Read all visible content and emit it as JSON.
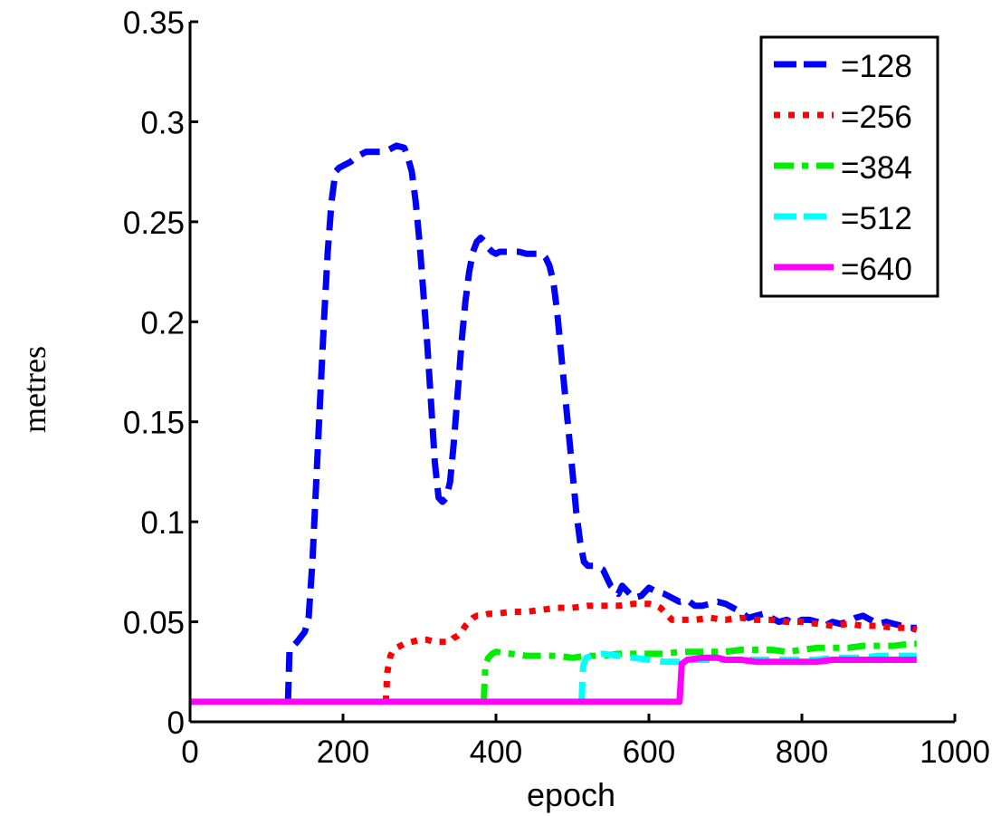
{
  "chart_data": {
    "type": "line",
    "title": "",
    "xlabel": "epoch",
    "ylabel": "metres",
    "xlim": [
      0,
      1000
    ],
    "ylim": [
      0,
      0.35
    ],
    "xticks": [
      0,
      200,
      400,
      600,
      800,
      1000
    ],
    "xtick_labels": [
      "0",
      "200",
      "400",
      "600",
      "800",
      "1000"
    ],
    "yticks": [
      0,
      0.05,
      0.1,
      0.15,
      0.2,
      0.25,
      0.3,
      0.35
    ],
    "ytick_labels": [
      "0",
      "0.05",
      "0.1",
      "0.15",
      "0.2",
      "0.25",
      "0.3",
      "0.35"
    ],
    "grid": false,
    "legend_position": "upper right",
    "series": [
      {
        "name": "=128",
        "color": "#0000ff",
        "style": "dashed",
        "x": [
          128,
          130,
          140,
          150,
          155,
          160,
          165,
          170,
          175,
          180,
          185,
          190,
          195,
          200,
          210,
          220,
          230,
          240,
          250,
          260,
          270,
          280,
          285,
          290,
          295,
          300,
          305,
          310,
          315,
          320,
          325,
          330,
          335,
          340,
          345,
          350,
          355,
          360,
          365,
          370,
          375,
          380,
          385,
          390,
          395,
          400,
          405,
          410,
          420,
          430,
          440,
          450,
          460,
          465,
          470,
          475,
          480,
          485,
          490,
          495,
          500,
          505,
          510,
          515,
          520,
          530,
          540,
          545,
          550,
          555,
          560,
          565,
          570,
          580,
          590,
          600,
          610,
          620,
          630,
          640,
          650,
          660,
          670,
          680,
          690,
          700,
          710,
          720,
          730,
          740,
          750,
          760,
          770,
          780,
          790,
          800,
          810,
          820,
          830,
          840,
          850,
          860,
          870,
          880,
          890,
          900,
          910,
          920,
          930,
          940,
          950
        ],
        "values": [
          0.01,
          0.036,
          0.04,
          0.045,
          0.052,
          0.08,
          0.12,
          0.16,
          0.2,
          0.235,
          0.26,
          0.275,
          0.277,
          0.278,
          0.28,
          0.283,
          0.285,
          0.285,
          0.285,
          0.286,
          0.288,
          0.287,
          0.282,
          0.275,
          0.26,
          0.24,
          0.215,
          0.19,
          0.16,
          0.13,
          0.112,
          0.11,
          0.112,
          0.12,
          0.14,
          0.165,
          0.19,
          0.21,
          0.225,
          0.235,
          0.24,
          0.242,
          0.24,
          0.237,
          0.235,
          0.234,
          0.235,
          0.235,
          0.235,
          0.235,
          0.234,
          0.234,
          0.234,
          0.232,
          0.228,
          0.22,
          0.205,
          0.185,
          0.165,
          0.145,
          0.125,
          0.105,
          0.09,
          0.08,
          0.078,
          0.078,
          0.076,
          0.072,
          0.068,
          0.066,
          0.064,
          0.068,
          0.066,
          0.062,
          0.063,
          0.067,
          0.065,
          0.064,
          0.062,
          0.06,
          0.061,
          0.058,
          0.058,
          0.059,
          0.06,
          0.059,
          0.057,
          0.055,
          0.052,
          0.053,
          0.054,
          0.052,
          0.05,
          0.051,
          0.049,
          0.051,
          0.051,
          0.05,
          0.048,
          0.05,
          0.049,
          0.05,
          0.052,
          0.053,
          0.051,
          0.049,
          0.05,
          0.049,
          0.048,
          0.047,
          0.047
        ]
      },
      {
        "name": "=256",
        "color": "#ff0000",
        "style": "dotted",
        "x": [
          256,
          258,
          262,
          266,
          270,
          275,
          280,
          290,
          300,
          310,
          320,
          330,
          340,
          345,
          350,
          355,
          360,
          365,
          370,
          375,
          380,
          390,
          400,
          420,
          440,
          460,
          480,
          500,
          520,
          540,
          560,
          580,
          600,
          610,
          615,
          620,
          625,
          630,
          640,
          650,
          660,
          680,
          700,
          720,
          740,
          760,
          780,
          800,
          820,
          840,
          860,
          880,
          900,
          920,
          940,
          950
        ],
        "values": [
          0.01,
          0.025,
          0.033,
          0.036,
          0.037,
          0.038,
          0.039,
          0.04,
          0.041,
          0.041,
          0.04,
          0.04,
          0.04,
          0.042,
          0.043,
          0.045,
          0.048,
          0.05,
          0.052,
          0.053,
          0.053,
          0.054,
          0.054,
          0.055,
          0.055,
          0.056,
          0.057,
          0.057,
          0.058,
          0.058,
          0.058,
          0.059,
          0.059,
          0.058,
          0.057,
          0.055,
          0.053,
          0.051,
          0.051,
          0.051,
          0.051,
          0.052,
          0.051,
          0.052,
          0.051,
          0.051,
          0.05,
          0.05,
          0.049,
          0.048,
          0.049,
          0.048,
          0.048,
          0.047,
          0.047,
          0.046
        ]
      },
      {
        "name": "=384",
        "color": "#00ee00",
        "style": "dashdot",
        "x": [
          384,
          386,
          390,
          395,
          400,
          420,
          440,
          460,
          480,
          500,
          520,
          540,
          560,
          580,
          600,
          620,
          640,
          660,
          680,
          700,
          720,
          740,
          760,
          780,
          800,
          820,
          840,
          860,
          880,
          900,
          920,
          940,
          950
        ],
        "values": [
          0.01,
          0.028,
          0.032,
          0.034,
          0.035,
          0.034,
          0.033,
          0.033,
          0.033,
          0.032,
          0.033,
          0.033,
          0.034,
          0.034,
          0.034,
          0.034,
          0.035,
          0.035,
          0.035,
          0.035,
          0.036,
          0.036,
          0.036,
          0.035,
          0.036,
          0.037,
          0.037,
          0.037,
          0.038,
          0.038,
          0.038,
          0.039,
          0.039
        ]
      },
      {
        "name": "=512",
        "color": "#00ffff",
        "style": "dashed",
        "x": [
          512,
          514,
          518,
          525,
          540,
          560,
          580,
          600,
          620,
          640,
          660,
          680,
          700,
          720,
          740,
          760,
          780,
          800,
          820,
          840,
          860,
          880,
          900,
          920,
          940,
          950
        ],
        "values": [
          0.01,
          0.028,
          0.032,
          0.033,
          0.034,
          0.033,
          0.032,
          0.031,
          0.03,
          0.03,
          0.031,
          0.031,
          0.031,
          0.031,
          0.031,
          0.031,
          0.031,
          0.031,
          0.031,
          0.032,
          0.032,
          0.032,
          0.033,
          0.033,
          0.033,
          0.033
        ]
      },
      {
        "name": "=640",
        "color": "#ff00ff",
        "style": "solid",
        "x": [
          0,
          640,
          643,
          650,
          670,
          690,
          700,
          720,
          740,
          760,
          780,
          800,
          820,
          840,
          860,
          880,
          900,
          920,
          940,
          950
        ],
        "values": [
          0.01,
          0.01,
          0.029,
          0.031,
          0.032,
          0.032,
          0.031,
          0.031,
          0.03,
          0.03,
          0.03,
          0.03,
          0.03,
          0.031,
          0.031,
          0.031,
          0.031,
          0.031,
          0.031,
          0.031
        ]
      }
    ]
  }
}
